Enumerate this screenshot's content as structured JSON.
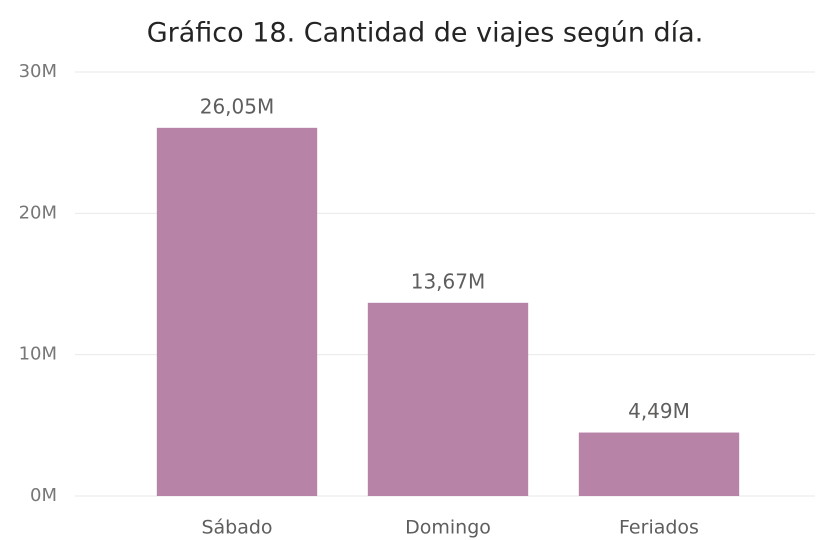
{
  "chart_data": {
    "type": "bar",
    "title": "Gráfico 18. Cantidad de viajes según día.",
    "categories": [
      "Sábado",
      "Domingo",
      "Feriados"
    ],
    "values": [
      26050000,
      13670000,
      4490000
    ],
    "value_labels": [
      "26,05M",
      "13,67M",
      "4,49M"
    ],
    "color": "#b784a7",
    "ylim": [
      0,
      30000000
    ],
    "yticks": [
      {
        "value": 0,
        "label": "0M"
      },
      {
        "value": 10000000,
        "label": "10M"
      },
      {
        "value": 20000000,
        "label": "20M"
      },
      {
        "value": 30000000,
        "label": "30M"
      }
    ],
    "grid": true
  }
}
